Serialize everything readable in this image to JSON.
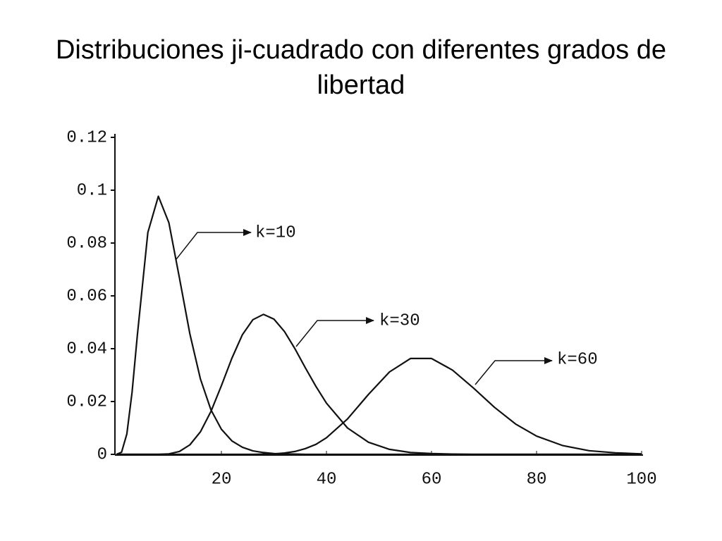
{
  "chart_data": {
    "type": "line",
    "title": "Distribuciones ji-cuadrado con diferentes grados de libertad",
    "x": [
      0,
      1,
      2,
      3,
      4,
      6,
      8,
      10,
      12,
      14,
      16,
      18,
      20,
      22,
      24,
      26,
      28,
      30,
      32,
      34,
      36,
      38,
      40,
      44,
      48,
      52,
      56,
      60,
      64,
      68,
      72,
      76,
      80,
      85,
      90,
      95,
      100
    ],
    "series": [
      {
        "name": "k=10",
        "color": "#111111",
        "values": [
          0,
          0.0008,
          0.0077,
          0.0235,
          0.0451,
          0.084,
          0.0977,
          0.0877,
          0.0669,
          0.0456,
          0.0286,
          0.0169,
          0.0095,
          0.0051,
          0.0027,
          0.0013,
          0.0007,
          0.0003,
          0.0002,
          0.0001,
          0,
          0,
          0,
          0,
          0,
          0,
          0,
          0,
          0,
          0,
          0,
          0,
          0,
          0,
          0,
          0,
          0
        ]
      },
      {
        "name": "k=30",
        "color": "#111111",
        "values": [
          0,
          0,
          0,
          0,
          0,
          0,
          0,
          0.0002,
          0.0011,
          0.0036,
          0.0085,
          0.0162,
          0.026,
          0.0364,
          0.0453,
          0.051,
          0.053,
          0.0512,
          0.0465,
          0.04,
          0.0327,
          0.0257,
          0.0194,
          0.01,
          0.0046,
          0.0019,
          0.0007,
          0.0003,
          0.0001,
          0,
          0,
          0,
          0,
          0,
          0,
          0,
          0
        ]
      },
      {
        "name": "k=60",
        "color": "#111111",
        "values": [
          0,
          0,
          0,
          0,
          0,
          0,
          0,
          0,
          0,
          0,
          0,
          0,
          0,
          0,
          0,
          0,
          0.0001,
          0.0002,
          0.0005,
          0.0011,
          0.0022,
          0.0038,
          0.0063,
          0.0134,
          0.0227,
          0.0312,
          0.0363,
          0.0363,
          0.0319,
          0.0251,
          0.0178,
          0.0115,
          0.0069,
          0.0033,
          0.0014,
          0.0006,
          0.0002
        ]
      }
    ],
    "xlim": [
      0,
      100
    ],
    "xticks": [
      20,
      40,
      60,
      80,
      100
    ],
    "ylim": [
      0,
      0.12
    ],
    "yticks": [
      0,
      0.02,
      0.04,
      0.06,
      0.08,
      0.1,
      0.12
    ],
    "grid": false
  }
}
